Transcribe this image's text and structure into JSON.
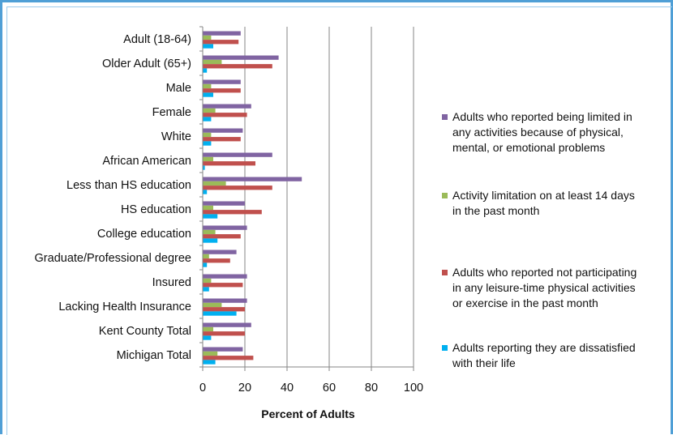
{
  "chart_data": {
    "type": "bar",
    "orientation": "horizontal",
    "categories": [
      "Adult (18-64)",
      "Older Adult (65+)",
      "Male",
      "Female",
      "White",
      "African American",
      "Less than HS education",
      "HS education",
      "College education",
      "Graduate/Professional degree",
      "Insured",
      "Lacking Health Insurance",
      "Kent County Total",
      "Michigan Total"
    ],
    "series": [
      {
        "name": "Adults who reported being limited in any activities because of physical, mental, or emotional problems",
        "legend_lines": [
          "Adults who reported being limited in",
          "any activities because of physical,",
          "mental, or emotional problems"
        ],
        "color": "#8064a2",
        "values": [
          18,
          36,
          18,
          23,
          19,
          33,
          47,
          20,
          21,
          16,
          21,
          21,
          23,
          19
        ]
      },
      {
        "name": "Activity limitation on at least 14 days in the past month",
        "legend_lines": [
          "Activity limitation on at least 14 days",
          "in the past month"
        ],
        "color": "#9bbb59",
        "values": [
          4,
          9,
          4,
          6,
          4,
          5,
          11,
          5,
          6,
          3,
          4,
          9,
          5,
          7
        ]
      },
      {
        "name": "Adults who reported not participating in any leisure-time physical activities or exercise in the past month",
        "legend_lines": [
          "Adults who reported not participating",
          "in any leisure-time physical activities",
          "or exercise in the past month"
        ],
        "color": "#c0504d",
        "values": [
          17,
          33,
          18,
          21,
          18,
          25,
          33,
          28,
          18,
          13,
          19,
          20,
          20,
          24
        ]
      },
      {
        "name": "Adults reporting they are dissatisfied with their life",
        "legend_lines": [
          "Adults reporting they are dissatisfied",
          "with their life"
        ],
        "color": "#00b0f0",
        "values": [
          5,
          2,
          5,
          4,
          4,
          1,
          2,
          7,
          7,
          2,
          3,
          16,
          4,
          6
        ]
      }
    ],
    "xlabel": "Percent of Adults",
    "xlim": [
      0,
      100
    ],
    "xticks": [
      0,
      20,
      40,
      60,
      80,
      100
    ],
    "grid": "vertical major gridlines",
    "legend_position": "right"
  }
}
